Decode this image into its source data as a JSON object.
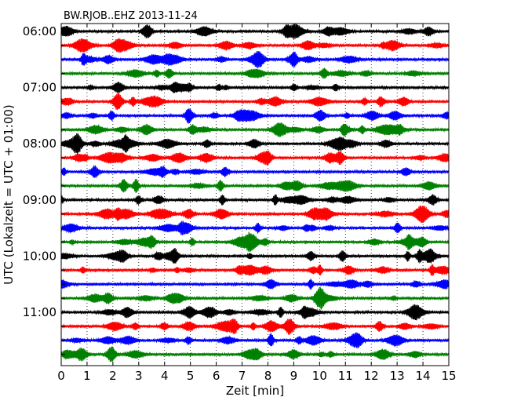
{
  "chart_data": {
    "type": "line",
    "title": "BW.RJOB..EHZ 2013-11-24",
    "xlabel": "Zeit  [min]",
    "ylabel": "UTC (Lokalzeit = UTC + 01:00)",
    "xlim": [
      0,
      15
    ],
    "x_ticks": [
      "0",
      "1",
      "2",
      "3",
      "4",
      "5",
      "6",
      "7",
      "8",
      "9",
      "10",
      "11",
      "12",
      "13",
      "14",
      "15"
    ],
    "y_ticks": [
      "06:00",
      "07:00",
      "08:00",
      "09:00",
      "10:00",
      "11:00"
    ],
    "grid": "vertical dotted lines at each minute",
    "trace_interval_min": 15,
    "trace_count": 24,
    "trace_colors": [
      "#000000",
      "#ff0000",
      "#0000ff",
      "#008000"
    ],
    "start_time": "06:00",
    "end_time": "12:00"
  }
}
